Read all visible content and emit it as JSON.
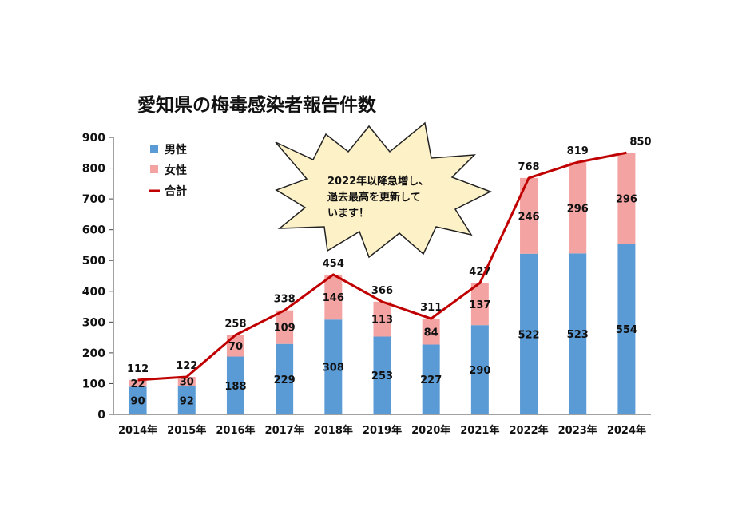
{
  "chart_data": {
    "type": "bar",
    "stacked": true,
    "title": "愛知県の梅毒感染者報告件数",
    "categories": [
      "2014年",
      "2015年",
      "2016年",
      "2017年",
      "2018年",
      "2019年",
      "2020年",
      "2021年",
      "2022年",
      "2023年",
      "2024年"
    ],
    "series": [
      {
        "name": "男性",
        "type": "bar",
        "color": "#5b9bd5",
        "values": [
          90,
          92,
          188,
          229,
          308,
          253,
          227,
          290,
          522,
          523,
          554
        ]
      },
      {
        "name": "女性",
        "type": "bar",
        "color": "#f4a3a3",
        "values": [
          22,
          30,
          70,
          109,
          146,
          113,
          84,
          137,
          246,
          296,
          296
        ]
      },
      {
        "name": "合計",
        "type": "line",
        "color": "#c00000",
        "values": [
          112,
          122,
          258,
          338,
          454,
          366,
          311,
          427,
          768,
          819,
          850
        ]
      }
    ],
    "yticks": [
      "0",
      "100",
      "200",
      "300",
      "400",
      "500",
      "600",
      "700",
      "800",
      "900"
    ],
    "ylim": [
      0,
      900
    ],
    "grid": false,
    "legend_position": "top-left",
    "annotation": {
      "lines": [
        "2022年以降急増し、",
        "過去最高を更新して",
        "います！"
      ],
      "fill": "#fdf1c7",
      "stroke": "#222222"
    }
  }
}
